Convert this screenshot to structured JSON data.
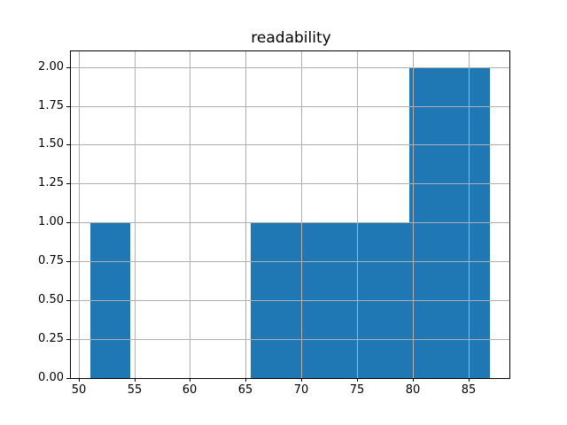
{
  "chart_data": {
    "type": "histogram",
    "title": "readability",
    "xlabel": "",
    "ylabel": "",
    "bin_edges": [
      51.1,
      54.68,
      58.26,
      61.84,
      65.42,
      69.0,
      72.58,
      76.16,
      79.74,
      83.32,
      86.9
    ],
    "counts": [
      1,
      0,
      0,
      0,
      1,
      1,
      1,
      1,
      2,
      2
    ],
    "xlim": [
      49.31,
      88.69
    ],
    "ylim": [
      0,
      2.1
    ],
    "x_ticks": [
      {
        "value": 50,
        "label": "50"
      },
      {
        "value": 55,
        "label": "55"
      },
      {
        "value": 60,
        "label": "60"
      },
      {
        "value": 65,
        "label": "65"
      },
      {
        "value": 70,
        "label": "70"
      },
      {
        "value": 75,
        "label": "75"
      },
      {
        "value": 80,
        "label": "80"
      },
      {
        "value": 85,
        "label": "85"
      }
    ],
    "y_ticks": [
      {
        "value": 0.0,
        "label": "0.00"
      },
      {
        "value": 0.25,
        "label": "0.25"
      },
      {
        "value": 0.5,
        "label": "0.50"
      },
      {
        "value": 0.75,
        "label": "0.75"
      },
      {
        "value": 1.0,
        "label": "1.00"
      },
      {
        "value": 1.25,
        "label": "1.25"
      },
      {
        "value": 1.5,
        "label": "1.50"
      },
      {
        "value": 1.75,
        "label": "1.75"
      },
      {
        "value": 2.0,
        "label": "2.00"
      }
    ],
    "grid": true,
    "axisbelow": false,
    "legend": null,
    "colors": {
      "bar": "#1f77b4",
      "grid": "#b0b0b0",
      "frame": "#000000",
      "text": "#000000",
      "background": "#ffffff"
    }
  }
}
